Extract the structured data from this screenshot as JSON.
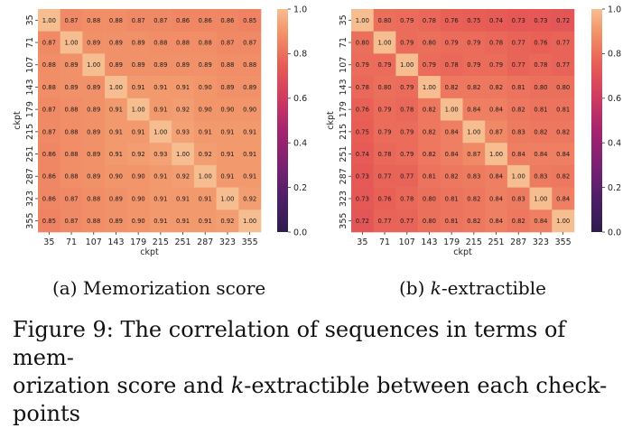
{
  "figure": {
    "caption_prefix": "Figure 9:",
    "caption_line1": "The correlation of sequences in terms of mem-",
    "caption_line2_a": "orization score and ",
    "caption_line2_k": "k",
    "caption_line2_b": "-extractible between each check-",
    "caption_line3": "points"
  },
  "chart_data": [
    {
      "type": "heatmap",
      "subcaption_label": "(a)",
      "subcaption_text": "Memorization score",
      "xlabel": "ckpt",
      "ylabel": "ckpt",
      "categories": [
        "35",
        "71",
        "107",
        "143",
        "179",
        "215",
        "251",
        "287",
        "323",
        "355"
      ],
      "colorbar": {
        "range": [
          0.0,
          1.0
        ],
        "ticks": [
          "0.0",
          "0.2",
          "0.4",
          "0.6",
          "0.8",
          "1.0"
        ]
      },
      "values": [
        [
          1.0,
          0.87,
          0.88,
          0.88,
          0.87,
          0.87,
          0.86,
          0.86,
          0.86,
          0.85
        ],
        [
          0.87,
          1.0,
          0.89,
          0.89,
          0.89,
          0.88,
          0.88,
          0.88,
          0.87,
          0.87
        ],
        [
          0.88,
          0.89,
          1.0,
          0.89,
          0.89,
          0.89,
          0.89,
          0.89,
          0.88,
          0.88
        ],
        [
          0.88,
          0.89,
          0.89,
          1.0,
          0.91,
          0.91,
          0.91,
          0.9,
          0.89,
          0.89
        ],
        [
          0.87,
          0.88,
          0.89,
          0.91,
          1.0,
          0.91,
          0.92,
          0.9,
          0.9,
          0.9
        ],
        [
          0.87,
          0.88,
          0.89,
          0.91,
          0.91,
          1.0,
          0.93,
          0.91,
          0.91,
          0.91
        ],
        [
          0.86,
          0.88,
          0.89,
          0.91,
          0.92,
          0.93,
          1.0,
          0.92,
          0.91,
          0.91
        ],
        [
          0.86,
          0.88,
          0.89,
          0.9,
          0.9,
          0.91,
          0.92,
          1.0,
          0.91,
          0.91
        ],
        [
          0.86,
          0.87,
          0.88,
          0.89,
          0.9,
          0.91,
          0.91,
          0.91,
          1.0,
          0.92
        ],
        [
          0.85,
          0.87,
          0.88,
          0.89,
          0.9,
          0.91,
          0.91,
          0.91,
          0.92,
          1.0
        ]
      ]
    },
    {
      "type": "heatmap",
      "subcaption_label": "(b)",
      "subcaption_k": "k",
      "subcaption_text": "-extractible",
      "xlabel": "ckpt",
      "ylabel": "ckpt",
      "categories": [
        "35",
        "71",
        "107",
        "143",
        "179",
        "215",
        "251",
        "287",
        "323",
        "355"
      ],
      "colorbar": {
        "range": [
          0.0,
          1.0
        ],
        "ticks": [
          "0.0",
          "0.2",
          "0.4",
          "0.6",
          "0.8",
          "1.0"
        ]
      },
      "values": [
        [
          1.0,
          0.8,
          0.79,
          0.78,
          0.76,
          0.75,
          0.74,
          0.73,
          0.73,
          0.72
        ],
        [
          0.8,
          1.0,
          0.79,
          0.8,
          0.79,
          0.79,
          0.78,
          0.77,
          0.76,
          0.77
        ],
        [
          0.79,
          0.79,
          1.0,
          0.79,
          0.78,
          0.79,
          0.79,
          0.77,
          0.78,
          0.77
        ],
        [
          0.78,
          0.8,
          0.79,
          1.0,
          0.82,
          0.82,
          0.82,
          0.81,
          0.8,
          0.8
        ],
        [
          0.76,
          0.79,
          0.78,
          0.82,
          1.0,
          0.84,
          0.84,
          0.82,
          0.81,
          0.81
        ],
        [
          0.75,
          0.79,
          0.79,
          0.82,
          0.84,
          1.0,
          0.87,
          0.83,
          0.82,
          0.82
        ],
        [
          0.74,
          0.78,
          0.79,
          0.82,
          0.84,
          0.87,
          1.0,
          0.84,
          0.84,
          0.84
        ],
        [
          0.73,
          0.77,
          0.77,
          0.81,
          0.82,
          0.83,
          0.84,
          1.0,
          0.83,
          0.82
        ],
        [
          0.73,
          0.76,
          0.78,
          0.8,
          0.81,
          0.82,
          0.84,
          0.83,
          1.0,
          0.84
        ],
        [
          0.72,
          0.77,
          0.77,
          0.8,
          0.81,
          0.82,
          0.84,
          0.82,
          0.84,
          1.0
        ]
      ]
    }
  ]
}
